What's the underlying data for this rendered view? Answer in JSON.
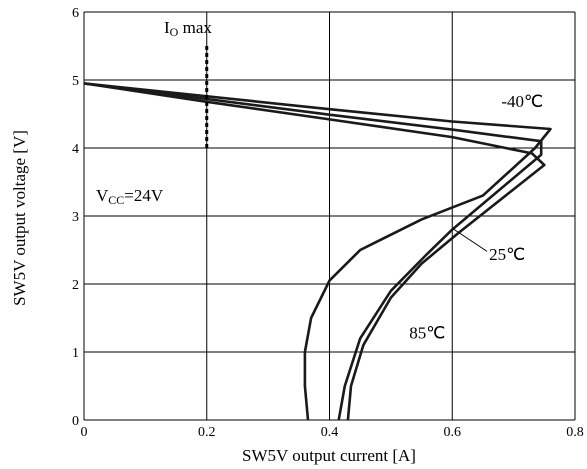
{
  "chart_data": {
    "type": "line",
    "xlabel": "SW5V output current [A]",
    "ylabel": "SW5V output voltage [V]",
    "xlim": [
      0,
      0.8
    ],
    "ylim": [
      0,
      6
    ],
    "x_ticks": [
      "0",
      "0.2",
      "0.4",
      "0.6",
      "0.8"
    ],
    "y_ticks": [
      "0",
      "1",
      "2",
      "3",
      "4",
      "5",
      "6"
    ],
    "grid": true,
    "series": [
      {
        "name": "-40℃",
        "points": [
          [
            0,
            4.95
          ],
          [
            0.2,
            4.76
          ],
          [
            0.4,
            4.57
          ],
          [
            0.6,
            4.39
          ],
          [
            0.76,
            4.28
          ],
          [
            0.735,
            4.0
          ],
          [
            0.65,
            3.3
          ],
          [
            0.55,
            2.95
          ],
          [
            0.45,
            2.5
          ],
          [
            0.4,
            2.05
          ],
          [
            0.37,
            1.5
          ],
          [
            0.36,
            1.0
          ],
          [
            0.36,
            0.5
          ],
          [
            0.365,
            0.0
          ]
        ]
      },
      {
        "name": "25℃",
        "points": [
          [
            0,
            4.95
          ],
          [
            0.2,
            4.72
          ],
          [
            0.4,
            4.49
          ],
          [
            0.6,
            4.27
          ],
          [
            0.745,
            4.1
          ],
          [
            0.745,
            3.9
          ],
          [
            0.6,
            2.8
          ],
          [
            0.56,
            2.45
          ],
          [
            0.5,
            1.9
          ],
          [
            0.45,
            1.2
          ],
          [
            0.425,
            0.5
          ],
          [
            0.415,
            0.0
          ]
        ]
      },
      {
        "name": "85℃",
        "points": [
          [
            0,
            4.95
          ],
          [
            0.2,
            4.68
          ],
          [
            0.4,
            4.42
          ],
          [
            0.6,
            4.16
          ],
          [
            0.73,
            3.92
          ],
          [
            0.75,
            3.75
          ],
          [
            0.61,
            2.75
          ],
          [
            0.55,
            2.3
          ],
          [
            0.5,
            1.8
          ],
          [
            0.455,
            1.1
          ],
          [
            0.435,
            0.5
          ],
          [
            0.43,
            0.0
          ]
        ]
      }
    ],
    "annotations": [
      {
        "text": "-40℃",
        "x": 0.68,
        "y": 4.6
      },
      {
        "text": "25℃",
        "x": 0.66,
        "y": 2.35
      },
      {
        "text": "85℃",
        "x": 0.53,
        "y": 1.2
      }
    ],
    "io_max": {
      "main": "I",
      "sub": "O",
      "suffix": " max",
      "x": 0.2,
      "y_range": [
        4.0,
        5.5
      ]
    },
    "vcc": {
      "main": "V",
      "sub": "CC",
      "suffix": "=24V"
    }
  }
}
